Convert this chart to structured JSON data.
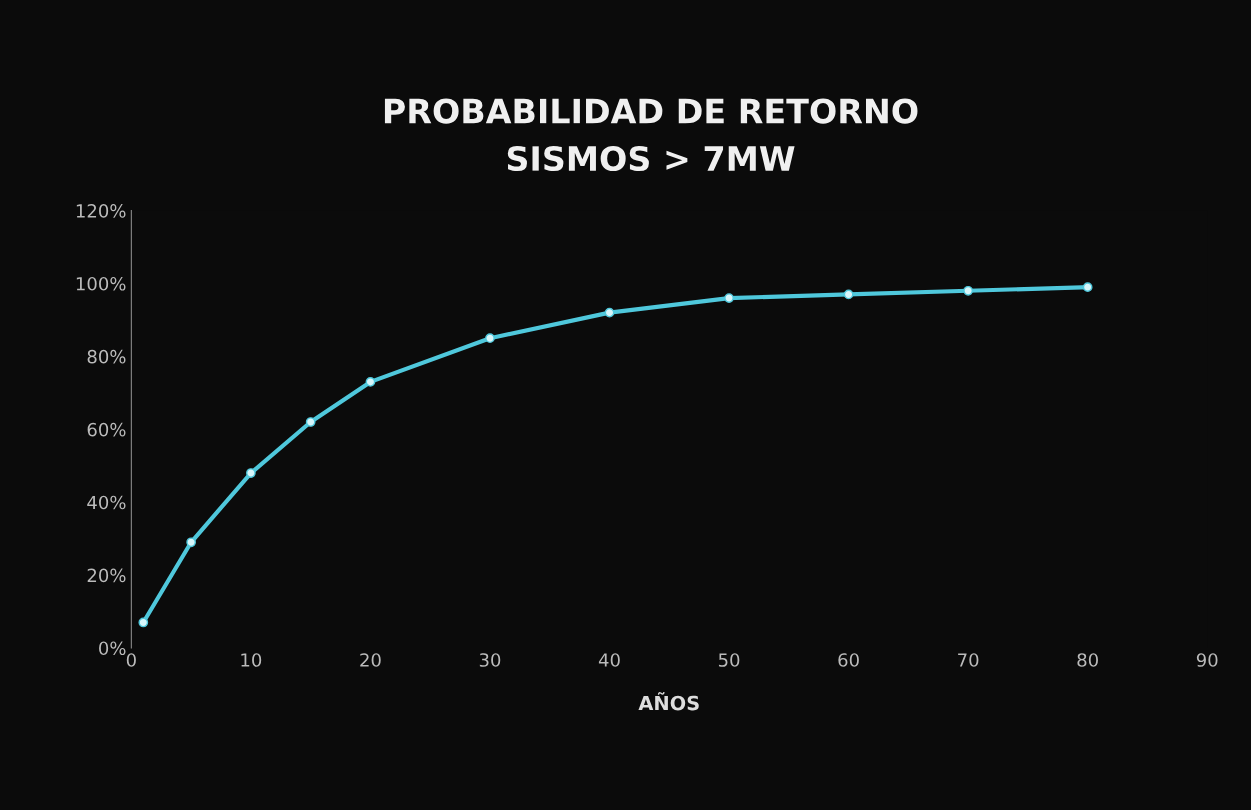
{
  "chart_data": {
    "type": "line",
    "title": "PROBABILIDAD DE RETORNO\nSISMOS > 7MW",
    "xlabel": "AÑOS",
    "x": [
      1,
      5,
      10,
      15,
      20,
      30,
      40,
      50,
      60,
      70,
      80
    ],
    "series": [
      {
        "color": "#4fc8dc",
        "values": [
          7,
          29,
          48,
          62,
          73,
          85,
          92,
          96,
          97,
          98,
          99
        ]
      }
    ],
    "xlim": [
      0,
      90
    ],
    "xticks": [
      0,
      10,
      20,
      30,
      40,
      50,
      60,
      70,
      80,
      90
    ],
    "ylim": [
      0,
      120
    ],
    "yticks": [
      {
        "value": 0,
        "label": "0%"
      },
      {
        "value": 20,
        "label": "20%"
      },
      {
        "value": 40,
        "label": "40%"
      },
      {
        "value": 60,
        "label": "60%"
      },
      {
        "value": 80,
        "label": "80%"
      },
      {
        "value": 100,
        "label": "100%"
      },
      {
        "value": 120,
        "label": "120%"
      }
    ],
    "grid": false,
    "legend": false,
    "marker": "circle",
    "line_style": "solid"
  }
}
